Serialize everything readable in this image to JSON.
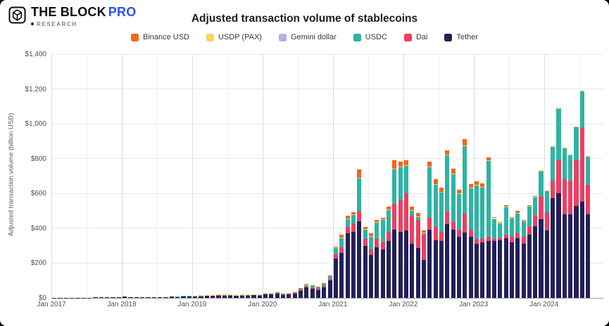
{
  "logo": {
    "brand": "THE BLOCK",
    "pro": "PRO",
    "sub": "RESEARCH"
  },
  "title": "Adjusted transaction volume of stablecoins",
  "legend": [
    {
      "label": "Binance USD",
      "color": "#f4641e"
    },
    {
      "label": "USDP (PAX)",
      "color": "#f9d45c"
    },
    {
      "label": "Gemini dollar",
      "color": "#b7b1e2"
    },
    {
      "label": "USDC",
      "color": "#2fb3a4"
    },
    {
      "label": "Dai",
      "color": "#ec3f63"
    },
    {
      "label": "Tether",
      "color": "#232059"
    }
  ],
  "chart_data": {
    "type": "bar",
    "stacked": true,
    "title": "Adjusted transaction volume of stablecoins",
    "ylabel": "Adjusted transaction volume (billion USD)",
    "ylim": [
      0,
      1400
    ],
    "y_ticks": [
      {
        "label": "$0",
        "value": 0
      },
      {
        "label": "$200",
        "value": 200
      },
      {
        "label": "$400",
        "value": 400
      },
      {
        "label": "$600",
        "value": 600
      },
      {
        "label": "$800",
        "value": 800
      },
      {
        "label": "$1,000",
        "value": 1000
      },
      {
        "label": "$1,200",
        "value": 1200
      },
      {
        "label": "$1,400",
        "value": 1400
      }
    ],
    "x_ticks": [
      {
        "label": "Jan 2017",
        "month": 0
      },
      {
        "label": "Jan 2018",
        "month": 12
      },
      {
        "label": "Jan 2019",
        "month": 24
      },
      {
        "label": "Jan 2020",
        "month": 36
      },
      {
        "label": "Jan 2021",
        "month": 48
      },
      {
        "label": "Jan 2022",
        "month": 60
      },
      {
        "label": "Jan 2023",
        "month": 72
      },
      {
        "label": "Jan 2024",
        "month": 84
      }
    ],
    "x_range": "Jan 2017 - Aug 2024, monthly",
    "months_count": 92,
    "series": [
      {
        "name": "Tether",
        "color": "#232059",
        "values": [
          1,
          1,
          1,
          1,
          2,
          2,
          2,
          3,
          3,
          4,
          5,
          6,
          8,
          6,
          6,
          5,
          6,
          6,
          5,
          6,
          7,
          8,
          9,
          9,
          9,
          11,
          13,
          14,
          16,
          15,
          16,
          14,
          15,
          16,
          17,
          16,
          21,
          22,
          28,
          19,
          21,
          26,
          42,
          60,
          52,
          46,
          60,
          100,
          225,
          258,
          372,
          379,
          439,
          298,
          245,
          291,
          278,
          325,
          392,
          379,
          386,
          312,
          285,
          218,
          392,
          332,
          325,
          425,
          390,
          350,
          375,
          350,
          312,
          318,
          325,
          325,
          332,
          345,
          318,
          345,
          312,
          365,
          412,
          450,
          386,
          574,
          600,
          482,
          480,
          527,
          553,
          480
        ]
      },
      {
        "name": "Dai",
        "color": "#ec3f63",
        "values": [
          0,
          0,
          0,
          0,
          0,
          0,
          0,
          0,
          0,
          0,
          0,
          0,
          0,
          0,
          0,
          0,
          0,
          0,
          0,
          0,
          0,
          0,
          1,
          1,
          1,
          1,
          1,
          1,
          1,
          1,
          1,
          1,
          1,
          1,
          1,
          1,
          1,
          1,
          2,
          2,
          2,
          3,
          5,
          6,
          6,
          6,
          8,
          10,
          26,
          33,
          35,
          47,
          61,
          41,
          33,
          48,
          40,
          54,
          150,
          180,
          214,
          161,
          161,
          147,
          67,
          74,
          55,
          70,
          45,
          40,
          108,
          40,
          27,
          21,
          27,
          14,
          13,
          20,
          34,
          27,
          40,
          47,
          60,
          130,
          107,
          100,
          190,
          199,
          188,
          262,
          424,
          168
        ]
      },
      {
        "name": "USDC",
        "color": "#2fb3a4",
        "values": [
          0,
          0,
          0,
          0,
          0,
          0,
          0,
          0,
          0,
          0,
          0,
          0,
          0,
          0,
          0,
          0,
          0,
          0,
          0,
          0,
          0,
          1,
          1,
          1,
          1,
          1,
          1,
          1,
          1,
          1,
          1,
          1,
          1,
          1,
          1,
          2,
          3,
          4,
          5,
          4,
          5,
          6,
          8,
          10,
          11,
          10,
          14,
          18,
          35,
          55,
          46,
          50,
          185,
          53,
          74,
          94,
          131,
          128,
          195,
          191,
          158,
          27,
          20,
          7,
          294,
          246,
          228,
          325,
          278,
          208,
          391,
          242,
          307,
          297,
          435,
          114,
          81,
          155,
          107,
          114,
          87,
          115,
          108,
          145,
          121,
          195,
          297,
          177,
          150,
          190,
          208,
          165
        ]
      },
      {
        "name": "Gemini dollar",
        "color": "#b7b1e2",
        "values": [
          0,
          0,
          0,
          0,
          0,
          0,
          0,
          0,
          0,
          0,
          0,
          0,
          0,
          0,
          0,
          0,
          0,
          0,
          0,
          0,
          0,
          0,
          0,
          0,
          0,
          0,
          0,
          0,
          0,
          0,
          0,
          0,
          0,
          0,
          0,
          0,
          0,
          0,
          0,
          0,
          0,
          0,
          0,
          0,
          0,
          0,
          0,
          0,
          0,
          0,
          0,
          0,
          0,
          0,
          0,
          0,
          0,
          0,
          0,
          0,
          0,
          0,
          0,
          0,
          0,
          0,
          0,
          0,
          0,
          0,
          0,
          0,
          0,
          0,
          0,
          0,
          0,
          0,
          0,
          0,
          0,
          0,
          0,
          0,
          0,
          0,
          0,
          0,
          0,
          0,
          0,
          0
        ]
      },
      {
        "name": "USDP (PAX)",
        "color": "#f9d45c",
        "values": [
          0,
          0,
          0,
          0,
          0,
          0,
          0,
          0,
          0,
          0,
          0,
          0,
          0,
          0,
          0,
          0,
          0,
          0,
          0,
          0,
          0,
          0,
          0,
          0,
          1,
          1,
          1,
          1,
          1,
          1,
          1,
          1,
          1,
          1,
          1,
          1,
          1,
          1,
          1,
          1,
          1,
          1,
          1,
          1,
          1,
          1,
          1,
          1,
          3,
          3,
          3,
          3,
          4,
          3,
          3,
          3,
          3,
          3,
          4,
          4,
          4,
          3,
          3,
          2,
          2,
          2,
          2,
          2,
          2,
          2,
          2,
          2,
          2,
          2,
          2,
          5,
          13,
          3,
          3,
          3,
          3,
          3,
          3,
          10,
          4,
          4,
          5,
          4,
          4,
          4,
          5,
          4
        ]
      },
      {
        "name": "Binance USD",
        "color": "#f4641e",
        "values": [
          0,
          0,
          0,
          0,
          0,
          0,
          0,
          0,
          0,
          0,
          0,
          0,
          0,
          0,
          0,
          0,
          0,
          0,
          0,
          0,
          0,
          0,
          0,
          0,
          0,
          0,
          0,
          0,
          0,
          0,
          0,
          0,
          0,
          0,
          0,
          0,
          0,
          0,
          0,
          0,
          0,
          0,
          1,
          1,
          1,
          1,
          1,
          2,
          5,
          13,
          15,
          13,
          50,
          14,
          15,
          13,
          10,
          13,
          48,
          28,
          27,
          20,
          20,
          14,
          27,
          27,
          24,
          27,
          27,
          20,
          34,
          20,
          20,
          20,
          20,
          8,
          0,
          10,
          4,
          11,
          4,
          3,
          4,
          0,
          0,
          0,
          0,
          0,
          0,
          0,
          0,
          0
        ]
      }
    ]
  }
}
